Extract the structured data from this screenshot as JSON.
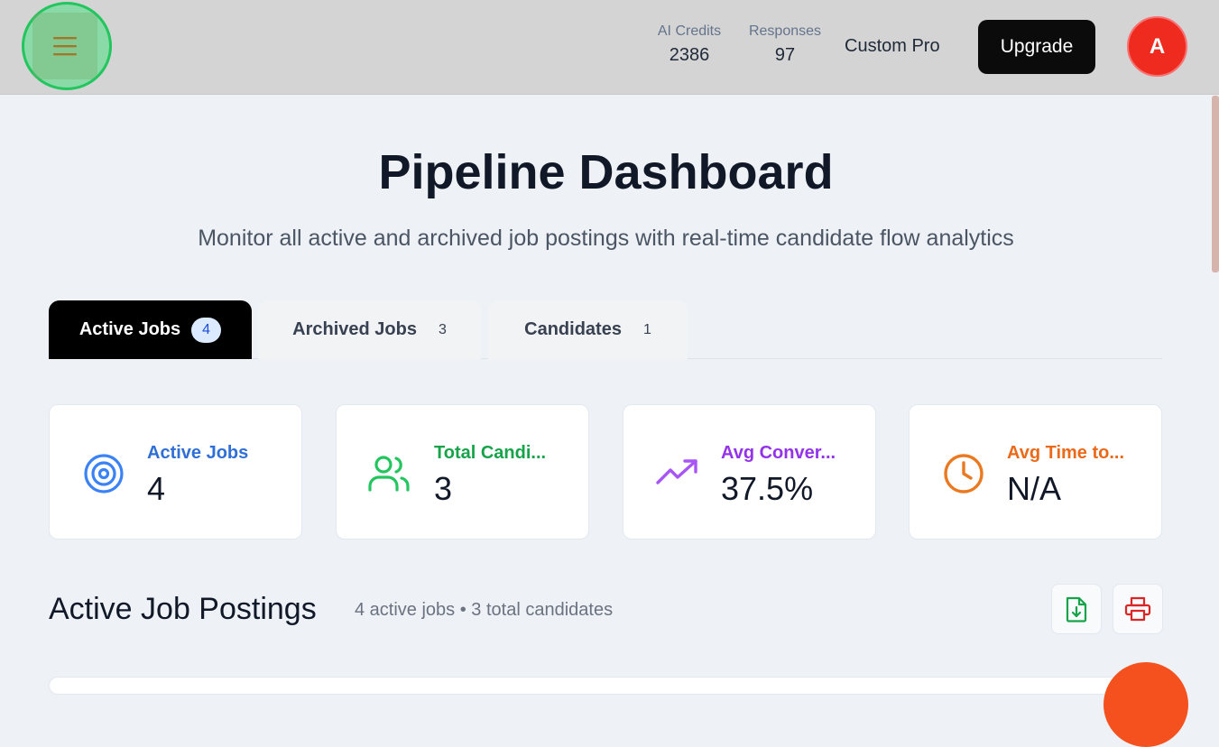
{
  "header": {
    "stats": [
      {
        "label": "AI Credits",
        "value": "2386"
      },
      {
        "label": "Responses",
        "value": "97"
      }
    ],
    "plan": "Custom Pro",
    "upgrade_label": "Upgrade",
    "avatar_initial": "A"
  },
  "page": {
    "title": "Pipeline Dashboard",
    "subtitle": "Monitor all active and archived job postings with real-time candidate flow analytics"
  },
  "tabs": [
    {
      "label": "Active Jobs",
      "count": "4",
      "active": true
    },
    {
      "label": "Archived Jobs",
      "count": "3",
      "active": false
    },
    {
      "label": "Candidates",
      "count": "1",
      "active": false
    }
  ],
  "cards": [
    {
      "label": "Active Jobs",
      "value": "4",
      "icon": "target-icon",
      "color": "#2f6fd6"
    },
    {
      "label": "Total Candi...",
      "value": "3",
      "icon": "users-icon",
      "color": "#16a34a"
    },
    {
      "label": "Avg Conver...",
      "value": "37.5%",
      "icon": "trending-up-icon",
      "color": "#9333ea"
    },
    {
      "label": "Avg Time to...",
      "value": "N/A",
      "icon": "clock-icon",
      "color": "#ea6a1a"
    }
  ],
  "section": {
    "title": "Active Job Postings",
    "meta": "4 active jobs • 3 total candidates"
  },
  "actions": {
    "export_icon": "file-download-icon",
    "print_icon": "printer-icon"
  }
}
